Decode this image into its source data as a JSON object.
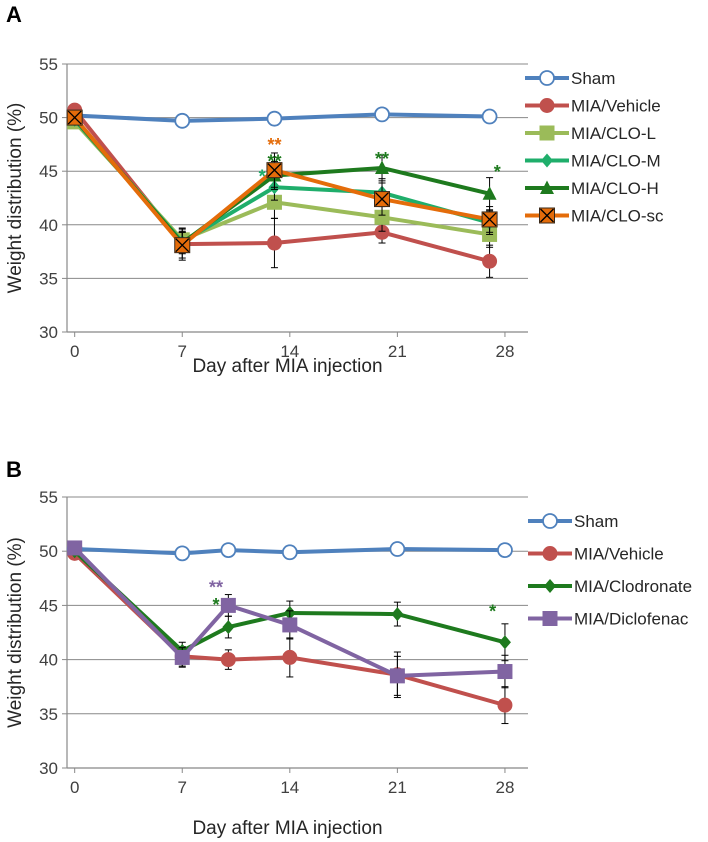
{
  "colors": {
    "sham": "#4F81BD",
    "vehicle": "#C0504D",
    "clo_l": "#9BBB59",
    "clo_m": "#1FAE6B",
    "clo_h": "#1E7A1E",
    "clo_sc": "#E46C0A",
    "clodronate": "#1E7A1E",
    "diclofenac": "#8064A2"
  },
  "chart_data": [
    {
      "panel": "A",
      "type": "line",
      "title": "",
      "xlabel": "Day after MIA injection",
      "ylabel": "Weight distribution (%)",
      "xlim": [
        -0.5,
        29.5
      ],
      "ylim": [
        30,
        55
      ],
      "xticks": [
        0,
        7,
        14,
        21,
        28
      ],
      "yticks": [
        30,
        35,
        40,
        45,
        50,
        55
      ],
      "grid": true,
      "legend_position": "right",
      "series": [
        {
          "name": "Sham",
          "color_key": "sham",
          "marker": "circle-open",
          "x": [
            0,
            7,
            13,
            20,
            27
          ],
          "values": [
            50.2,
            49.7,
            49.9,
            50.3,
            50.1
          ],
          "errors": [
            0,
            0,
            0,
            0,
            0
          ]
        },
        {
          "name": "MIA/Vehicle",
          "color_key": "vehicle",
          "marker": "circle",
          "x": [
            0,
            7,
            13,
            20,
            27
          ],
          "values": [
            50.7,
            38.2,
            38.3,
            39.3,
            36.6
          ],
          "errors": [
            0,
            1.5,
            2.3,
            1.0,
            1.5
          ]
        },
        {
          "name": "MIA/CLO-L",
          "color_key": "clo_l",
          "marker": "square",
          "x": [
            0,
            7,
            13,
            20,
            27
          ],
          "values": [
            49.6,
            38.6,
            42.1,
            40.7,
            39.1
          ],
          "errors": [
            0,
            1.0,
            1.5,
            1.3,
            1.2
          ]
        },
        {
          "name": "MIA/CLO-M",
          "color_key": "clo_m",
          "marker": "diamond",
          "x": [
            0,
            7,
            13,
            20,
            27
          ],
          "values": [
            49.8,
            38.4,
            43.5,
            43.0,
            40.2
          ],
          "errors": [
            0,
            1.0,
            1.2,
            1.3,
            1.1
          ]
        },
        {
          "name": "MIA/CLO-H",
          "color_key": "clo_h",
          "marker": "triangle",
          "x": [
            0,
            7,
            13,
            20,
            27
          ],
          "values": [
            49.9,
            38.3,
            44.6,
            45.3,
            42.9
          ],
          "errors": [
            0,
            1.0,
            1.3,
            1.2,
            1.5
          ]
        },
        {
          "name": "MIA/CLO-sc",
          "color_key": "clo_sc",
          "marker": "square-x",
          "x": [
            0,
            7,
            13,
            20,
            27
          ],
          "values": [
            50.0,
            38.1,
            45.1,
            42.4,
            40.5
          ],
          "errors": [
            0,
            1.2,
            1.6,
            1.5,
            1.2
          ]
        }
      ],
      "annotations": [
        {
          "text": "**",
          "x": 13,
          "y": 47.8,
          "color_key": "clo_sc"
        },
        {
          "text": "**",
          "x": 13,
          "y": 46.3,
          "color_key": "clo_h"
        },
        {
          "text": "*",
          "x": 12.2,
          "y": 44.9,
          "color_key": "clo_m"
        },
        {
          "text": "**",
          "x": 20,
          "y": 46.5,
          "color_key": "clo_h"
        },
        {
          "text": "*",
          "x": 27.5,
          "y": 45.3,
          "color_key": "clo_h"
        }
      ]
    },
    {
      "panel": "B",
      "type": "line",
      "title": "",
      "xlabel": "Day after MIA injection",
      "ylabel": "Weight distribution (%)",
      "xlim": [
        -0.5,
        29.5
      ],
      "ylim": [
        30,
        55
      ],
      "xticks": [
        0,
        7,
        14,
        21,
        28
      ],
      "yticks": [
        30,
        35,
        40,
        45,
        50,
        55
      ],
      "grid": true,
      "legend_position": "right",
      "series": [
        {
          "name": "Sham",
          "color_key": "sham",
          "marker": "circle-open",
          "x": [
            0,
            7,
            10,
            14,
            21,
            28
          ],
          "values": [
            50.2,
            49.8,
            50.1,
            49.9,
            50.2,
            50.1
          ],
          "errors": [
            0,
            0,
            0,
            0,
            0,
            0
          ]
        },
        {
          "name": "MIA/Vehicle",
          "color_key": "vehicle",
          "marker": "circle",
          "x": [
            0,
            7,
            10,
            14,
            21,
            28
          ],
          "values": [
            49.8,
            40.3,
            40.0,
            40.2,
            38.6,
            35.8
          ],
          "errors": [
            0,
            0.9,
            0.9,
            1.8,
            2.1,
            1.7
          ]
        },
        {
          "name": "MIA/Clodronate",
          "color_key": "clodronate",
          "marker": "diamond",
          "x": [
            0,
            7,
            10,
            14,
            21,
            28
          ],
          "values": [
            50.0,
            40.8,
            43.0,
            44.3,
            44.2,
            41.6
          ],
          "errors": [
            0,
            0.8,
            1.0,
            1.1,
            1.1,
            1.7
          ]
        },
        {
          "name": "MIA/Diclofenac",
          "color_key": "diclofenac",
          "marker": "square",
          "x": [
            0,
            7,
            10,
            14,
            21,
            28
          ],
          "values": [
            50.3,
            40.2,
            45.0,
            43.2,
            38.5,
            38.9
          ],
          "errors": [
            0,
            0.9,
            1.0,
            1.3,
            1.8,
            1.5
          ]
        }
      ],
      "annotations": [
        {
          "text": "**",
          "x": 9.2,
          "y": 47.0,
          "color_key": "diclofenac"
        },
        {
          "text": "*",
          "x": 9.2,
          "y": 45.4,
          "color_key": "clodronate"
        },
        {
          "text": "*",
          "x": 27.2,
          "y": 44.8,
          "color_key": "clodronate"
        }
      ]
    }
  ]
}
